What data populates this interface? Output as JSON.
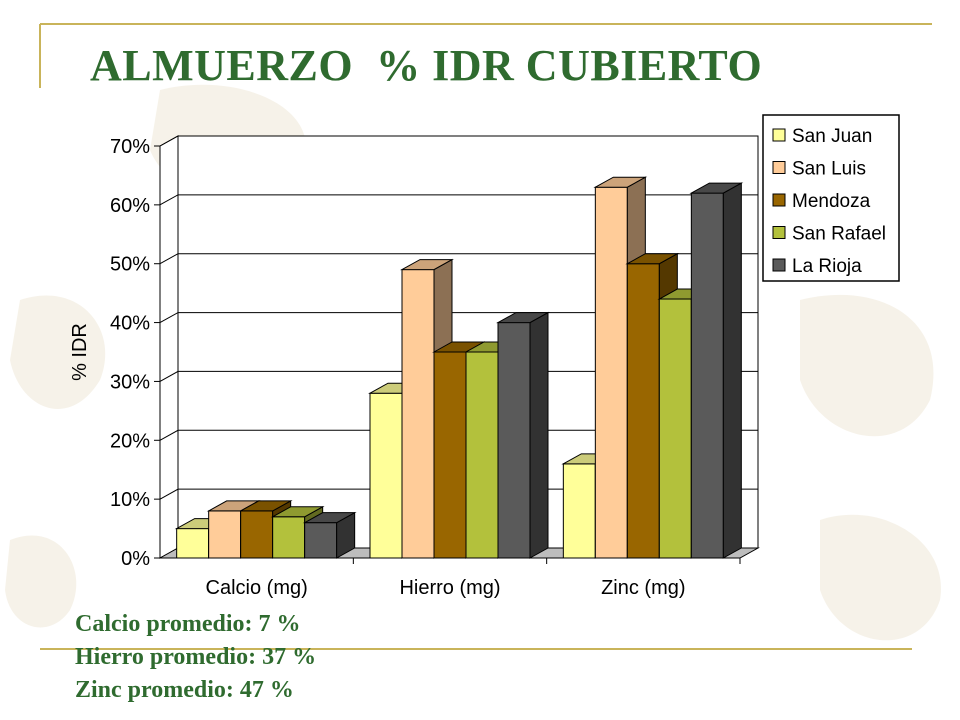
{
  "slide": {
    "title": "ALMUERZO  % IDR CUBIERTO",
    "accent_color": "#c9b45a",
    "title_color": "#2f6b2f"
  },
  "chart_data": {
    "type": "bar",
    "style": "3d-clustered",
    "categories": [
      "Calcio (mg)",
      "Hierro (mg)",
      "Zinc (mg)"
    ],
    "series": [
      {
        "name": "San Juan",
        "color": "#ffff99",
        "values": [
          5,
          28,
          16
        ]
      },
      {
        "name": "San Luis",
        "color": "#ffcc99",
        "values": [
          8,
          49,
          63
        ]
      },
      {
        "name": "Mendoza",
        "color": "#996600",
        "values": [
          8,
          35,
          50
        ]
      },
      {
        "name": "San Rafael",
        "color": "#b3c13c",
        "values": [
          7,
          35,
          44
        ]
      },
      {
        "name": "La Rioja",
        "color": "#5a5a5a",
        "values": [
          6,
          40,
          62
        ]
      }
    ],
    "ylabel": "% IDR",
    "ylim": [
      0,
      70
    ],
    "yticks": [
      "0%",
      "10%",
      "20%",
      "30%",
      "40%",
      "50%",
      "60%",
      "70%"
    ],
    "grid": true,
    "legend_position": "top-right"
  },
  "notes": [
    "Calcio promedio: 7 %",
    "Hierro promedio: 37 %",
    "Zinc promedio: 47 %"
  ]
}
